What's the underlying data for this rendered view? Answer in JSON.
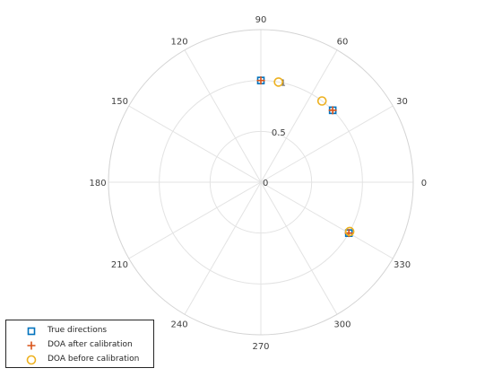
{
  "chart_data": {
    "type": "polar-scatter",
    "theta_ticks": [
      "0",
      "30",
      "60",
      "90",
      "120",
      "150",
      "180",
      "210",
      "240",
      "270",
      "300",
      "330"
    ],
    "r_ticks": [
      "0",
      "0.5",
      "1"
    ],
    "rlim": [
      0,
      1.5
    ],
    "grid": true,
    "legend_position": "bottom-left",
    "series": [
      {
        "name": "True directions",
        "marker": "square",
        "color": "#0072BD",
        "points": [
          {
            "theta": 90,
            "r": 1.0
          },
          {
            "theta": 45,
            "r": 1.0
          },
          {
            "theta": -30,
            "r": 1.0
          }
        ]
      },
      {
        "name": "DOA after calibration",
        "marker": "plus",
        "color": "#D95319",
        "points": [
          {
            "theta": 90,
            "r": 1.0
          },
          {
            "theta": 45,
            "r": 1.0
          },
          {
            "theta": -30,
            "r": 1.0
          }
        ]
      },
      {
        "name": "DOA before calibration",
        "marker": "circle",
        "color": "#EDB120",
        "points": [
          {
            "theta": 80,
            "r": 1.0
          },
          {
            "theta": 53,
            "r": 1.0
          },
          {
            "theta": -29,
            "r": 1.0
          }
        ]
      }
    ]
  }
}
